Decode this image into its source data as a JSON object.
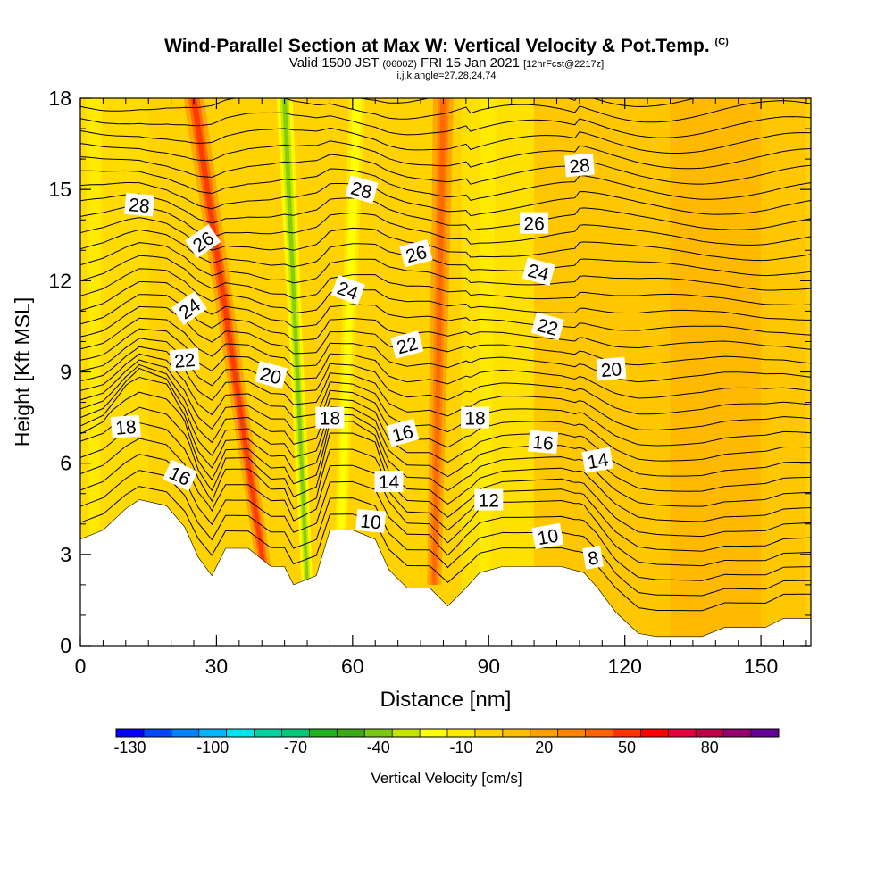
{
  "header": {
    "title": "Wind-Parallel Section at Max W: Vertical Velocity & Pot.Temp.",
    "title_mark": "(C)",
    "line2_a": "Valid 1500 JST",
    "line2_small_a": "(0600Z)",
    "line2_b": "FRI 15 Jan 2021",
    "line2_small_b": "[12hrFcst@2217z]",
    "line3": "i,j,k,angle=27,28,24,74"
  },
  "chart_data": {
    "type": "heatmap",
    "xlabel": "Distance [nm]",
    "ylabel": "Height [Kft MSL]",
    "xlim": [
      0,
      161
    ],
    "ylim": [
      0,
      18
    ],
    "x_ticks": [
      0,
      30,
      60,
      90,
      120,
      150
    ],
    "y_ticks": [
      0,
      3,
      6,
      9,
      12,
      15,
      18
    ],
    "colorbar": {
      "label": "Vertical Velocity [cm/s]",
      "tick_labels": [
        "-130",
        "-100",
        "-70",
        "-40",
        "-10",
        "20",
        "50",
        "80"
      ],
      "tick_values": [
        -130,
        -100,
        -70,
        -40,
        -10,
        20,
        50,
        80
      ],
      "colors": [
        "#0000ff",
        "#0046ff",
        "#0082ff",
        "#00b4ff",
        "#00e6f0",
        "#00d2a0",
        "#00c878",
        "#1eb41e",
        "#3caa14",
        "#78c814",
        "#c3e600",
        "#ffff00",
        "#ffeb00",
        "#ffd200",
        "#ffbe00",
        "#ffa000",
        "#ff8200",
        "#ff6400",
        "#ff3200",
        "#ff0000",
        "#e6003c",
        "#be0046",
        "#96006e",
        "#640096"
      ]
    },
    "terrain_kft": [
      [
        0,
        3.5
      ],
      [
        5,
        3.8
      ],
      [
        10,
        4.5
      ],
      [
        13,
        4.8
      ],
      [
        19,
        4.6
      ],
      [
        23,
        3.9
      ],
      [
        26,
        2.9
      ],
      [
        29,
        2.3
      ],
      [
        32,
        3.2
      ],
      [
        37,
        3.2
      ],
      [
        42,
        2.6
      ],
      [
        45,
        2.6
      ],
      [
        47,
        2.0
      ],
      [
        52,
        2.3
      ],
      [
        55,
        3.8
      ],
      [
        60,
        3.8
      ],
      [
        65,
        3.5
      ],
      [
        68,
        2.5
      ],
      [
        72,
        1.9
      ],
      [
        77,
        1.9
      ],
      [
        81,
        1.3
      ],
      [
        85,
        1.9
      ],
      [
        88,
        2.4
      ],
      [
        93,
        2.6
      ],
      [
        101,
        2.6
      ],
      [
        106,
        2.6
      ],
      [
        111,
        2.4
      ],
      [
        114,
        1.9
      ],
      [
        118,
        1.1
      ],
      [
        123,
        0.4
      ],
      [
        127,
        0.3
      ],
      [
        137,
        0.3
      ],
      [
        142,
        0.6
      ],
      [
        151,
        0.6
      ],
      [
        155,
        0.9
      ],
      [
        161,
        0.9
      ]
    ],
    "theta_contours": {
      "interval": 1,
      "labels": [
        {
          "value": "28",
          "x": 13,
          "y": 14.5,
          "angle": 5
        },
        {
          "value": "26",
          "x": 27,
          "y": 13.3,
          "angle": -35
        },
        {
          "value": "24",
          "x": 24,
          "y": 11.1,
          "angle": -35
        },
        {
          "value": "22",
          "x": 23,
          "y": 9.4,
          "angle": -5
        },
        {
          "value": "20",
          "x": 42,
          "y": 8.9,
          "angle": 15
        },
        {
          "value": "18",
          "x": 10,
          "y": 7.2,
          "angle": -5
        },
        {
          "value": "16",
          "x": 22,
          "y": 5.6,
          "angle": 25
        },
        {
          "value": "18",
          "x": 55,
          "y": 7.5,
          "angle": 0
        },
        {
          "value": "16",
          "x": 71,
          "y": 7.0,
          "angle": -15
        },
        {
          "value": "14",
          "x": 68,
          "y": 5.4,
          "angle": 0
        },
        {
          "value": "10",
          "x": 64,
          "y": 4.1,
          "angle": 5
        },
        {
          "value": "28",
          "x": 62,
          "y": 15.0,
          "angle": 15
        },
        {
          "value": "24",
          "x": 59,
          "y": 11.7,
          "angle": 20
        },
        {
          "value": "26",
          "x": 74,
          "y": 12.9,
          "angle": -15
        },
        {
          "value": "22",
          "x": 72,
          "y": 9.9,
          "angle": -15
        },
        {
          "value": "18",
          "x": 87,
          "y": 7.5,
          "angle": 0
        },
        {
          "value": "12",
          "x": 90,
          "y": 4.8,
          "angle": 0
        },
        {
          "value": "10",
          "x": 103,
          "y": 3.6,
          "angle": -10
        },
        {
          "value": "8",
          "x": 113,
          "y": 2.9,
          "angle": -10
        },
        {
          "value": "16",
          "x": 102,
          "y": 6.7,
          "angle": 5
        },
        {
          "value": "14",
          "x": 114,
          "y": 6.1,
          "angle": -10
        },
        {
          "value": "22",
          "x": 103,
          "y": 10.5,
          "angle": 15
        },
        {
          "value": "24",
          "x": 101,
          "y": 12.3,
          "angle": 15
        },
        {
          "value": "26",
          "x": 100,
          "y": 13.9,
          "angle": 0
        },
        {
          "value": "20",
          "x": 117,
          "y": 9.1,
          "angle": -5
        },
        {
          "value": "28",
          "x": 110,
          "y": 15.8,
          "angle": -5
        }
      ]
    },
    "velocity_features": [
      {
        "name": "updraft",
        "x_top": 25,
        "x_bottom": 41,
        "value": 50
      },
      {
        "name": "updraft",
        "x_top": 80,
        "x_bottom": 78,
        "value": 40
      },
      {
        "name": "downdraft",
        "x_top": 45,
        "x_bottom": 50,
        "value": -40
      },
      {
        "name": "downdraft",
        "x_top": 61,
        "x_bottom": 57,
        "value": -25
      },
      {
        "name": "downdraft",
        "x_top": 90,
        "x_bottom": 89,
        "value": -15
      },
      {
        "name": "downdraft",
        "x_top": 3,
        "x_bottom": 3,
        "value": -15
      }
    ]
  }
}
